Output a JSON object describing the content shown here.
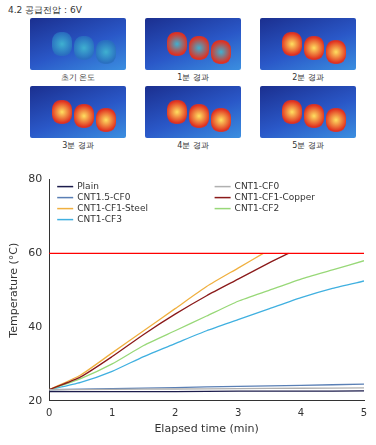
{
  "header": "4.2 공급전압 : 6V",
  "image_labels": [
    "초기 온도",
    "1분 경과",
    "2분 경과",
    "3분 경과",
    "4분 경과",
    "5분 경과"
  ],
  "chart_data": {
    "type": "line",
    "x_label": "Elapsed time (min)",
    "y_label": "Temperature (°C)",
    "xlim": [
      0,
      5
    ],
    "xticks": [
      0,
      1,
      2,
      3,
      4,
      5
    ],
    "ylim": [
      20,
      80
    ],
    "yticks": [
      20,
      40,
      60,
      80
    ],
    "grid": false,
    "legend": "top",
    "threshold": {
      "value": 60,
      "color": "#ff0000"
    },
    "series": [
      {
        "name": "Plain",
        "color": "#1c1c4c",
        "x": [
          0,
          1,
          2,
          3,
          4,
          5
        ],
        "values": [
          22.5,
          22.5,
          22.5,
          22.6,
          22.6,
          22.7
        ]
      },
      {
        "name": "CNT1-CF0",
        "color": "#b0b0b0",
        "x": [
          0,
          1,
          2,
          3,
          4,
          5
        ],
        "values": [
          23,
          23.1,
          23.2,
          23.3,
          23.4,
          23.5
        ]
      },
      {
        "name": "CNT1.5-CF0",
        "color": "#5a7fb5",
        "x": [
          0,
          1,
          2,
          3,
          4,
          5
        ],
        "values": [
          23,
          23.3,
          23.6,
          23.9,
          24.2,
          24.5
        ]
      },
      {
        "name": "CNT1-CF1-Copper",
        "color": "#8b1a1a",
        "x": [
          0,
          0.5,
          1,
          1.5,
          2,
          2.5,
          3,
          3.5,
          3.8
        ],
        "values": [
          23,
          26.5,
          32,
          38,
          43.5,
          48.5,
          53,
          57.5,
          60
        ]
      },
      {
        "name": "CNT1-CF1-Steel",
        "color": "#f0b040",
        "x": [
          0,
          0.5,
          1,
          1.5,
          2,
          2.5,
          3,
          3.4
        ],
        "values": [
          23,
          27,
          33,
          39,
          45,
          51,
          56,
          60
        ]
      },
      {
        "name": "CNT1-CF2",
        "color": "#98d878",
        "x": [
          0,
          0.5,
          1,
          1.5,
          2,
          2.5,
          3,
          3.5,
          4,
          4.5,
          5
        ],
        "values": [
          23,
          26,
          30,
          35,
          39,
          43,
          47,
          50,
          53,
          55.5,
          58
        ]
      },
      {
        "name": "CNT1-CF3",
        "color": "#40b0e0",
        "x": [
          0,
          0.5,
          1,
          1.5,
          2,
          2.5,
          3,
          3.5,
          4,
          4.5,
          5
        ],
        "values": [
          23,
          25,
          28,
          32,
          35.5,
          39,
          42,
          45,
          48,
          50.5,
          52.5
        ]
      }
    ]
  }
}
